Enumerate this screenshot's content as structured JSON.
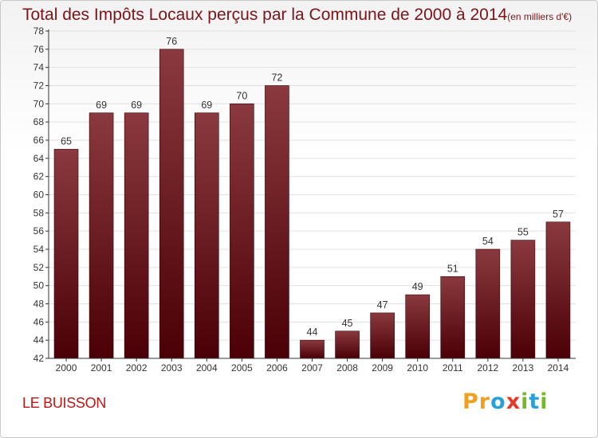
{
  "header": {
    "title": "Total des Impôts Locaux perçus par la Commune de 2000 à 2014",
    "unit": "(en milliers d'€)"
  },
  "footer": {
    "commune": "LE BUISSON",
    "logo_letters": [
      "P",
      "r",
      "o",
      "x",
      "i",
      "t",
      "i"
    ],
    "logo_colors": [
      "#f0a01e",
      "#f0a01e",
      "#2aa0d8",
      "#e23a2a",
      "#78b828",
      "#2aa0d8",
      "#78b828"
    ]
  },
  "colors": {
    "bar_top": "#8a3a3e",
    "bar_bottom": "#4a0006",
    "axis": "#333333",
    "grid": "#e0e0e0"
  },
  "chart_data": {
    "type": "bar",
    "title": "Total des Impôts Locaux perçus par la Commune de 2000 à 2014",
    "ylabel": "(en milliers d'€)",
    "categories": [
      "2000",
      "2001",
      "2002",
      "2003",
      "2004",
      "2005",
      "2006",
      "2007",
      "2008",
      "2009",
      "2010",
      "2011",
      "2012",
      "2013",
      "2014"
    ],
    "values": [
      65,
      69,
      69,
      76,
      69,
      70,
      72,
      44,
      45,
      47,
      49,
      51,
      54,
      55,
      57
    ],
    "ylim": [
      42,
      78
    ],
    "yticks": [
      42,
      44,
      46,
      48,
      50,
      52,
      54,
      56,
      58,
      60,
      62,
      64,
      66,
      68,
      70,
      72,
      74,
      76,
      78
    ],
    "grid": true,
    "legend": "none"
  }
}
